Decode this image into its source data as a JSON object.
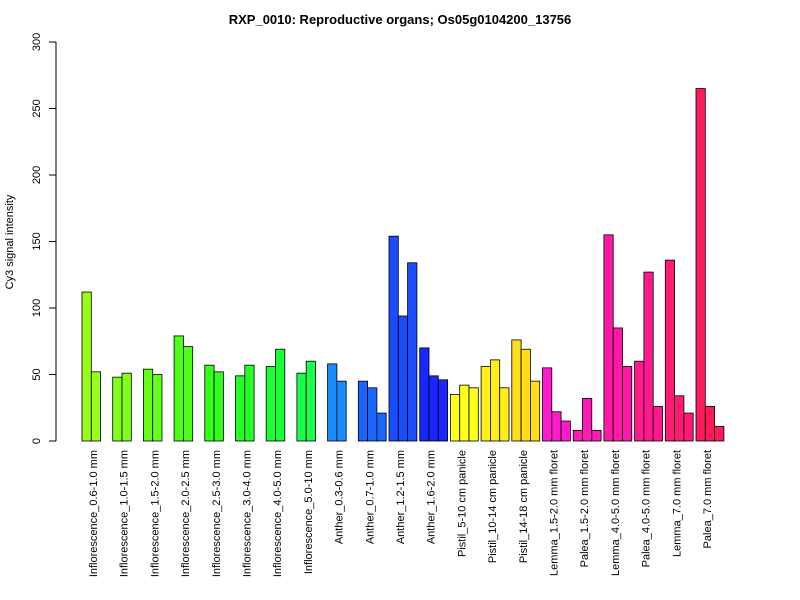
{
  "chart_data": {
    "type": "bar",
    "title": "RXP_0010: Reproductive organs; Os05g0104200_13756",
    "xlabel": "",
    "ylabel": "Cy3 signal intensity",
    "ylim": [
      0,
      300
    ],
    "yticks": [
      "0",
      "50",
      "100",
      "150",
      "200",
      "250",
      "300"
    ],
    "grid": false,
    "legend": "none",
    "groups": [
      {
        "label": "Inflorescence_0.6-1.0 mm",
        "color": "#99ff1a",
        "values": [
          112,
          52
        ]
      },
      {
        "label": "Inflorescence_1.0-1.5 mm",
        "color": "#80ff1a",
        "values": [
          48,
          51
        ]
      },
      {
        "label": "Inflorescence_1.5-2.0 mm",
        "color": "#66ff1a",
        "values": [
          54,
          50
        ]
      },
      {
        "label": "Inflorescence_2.0-2.5 mm",
        "color": "#4dff1a",
        "values": [
          79,
          71
        ]
      },
      {
        "label": "Inflorescence_2.5-3.0 mm",
        "color": "#33ff1a",
        "values": [
          57,
          52
        ]
      },
      {
        "label": "Inflorescence_3.0-4.0 mm",
        "color": "#26ff26",
        "values": [
          49,
          57
        ]
      },
      {
        "label": "Inflorescence_4.0-5.0 mm",
        "color": "#1aff33",
        "values": [
          56,
          69
        ]
      },
      {
        "label": "Inflorescence_5.0-10 mm",
        "color": "#1aff4d",
        "values": [
          51,
          60
        ]
      },
      {
        "label": "Anther_0.3-0.6 mm",
        "color": "#1a8cff",
        "values": [
          58,
          45
        ]
      },
      {
        "label": "Anther_0.7-1.0 mm",
        "color": "#1a66ff",
        "values": [
          45,
          40,
          21
        ]
      },
      {
        "label": "Anther_1.2-1.5 mm",
        "color": "#1a4dff",
        "values": [
          154,
          94,
          134
        ]
      },
      {
        "label": "Anther_1.6-2.0 mm",
        "color": "#1a26ff",
        "values": [
          70,
          49,
          46
        ]
      },
      {
        "label": "Pistil_5-10 cm panicle",
        "color": "#ffff1a",
        "values": [
          35,
          42,
          40
        ]
      },
      {
        "label": "Pistil_10-14 cm panicle",
        "color": "#ffee1a",
        "values": [
          56,
          61,
          40
        ]
      },
      {
        "label": "Pistil_14-18 cm panicle",
        "color": "#ffdd1a",
        "values": [
          76,
          69,
          45
        ]
      },
      {
        "label": "Lemma_1.5-2.0 mm floret",
        "color": "#ff1acc",
        "values": [
          55,
          22,
          15
        ]
      },
      {
        "label": "Palea_1.5-2.0 mm floret",
        "color": "#ff1ab8",
        "values": [
          8,
          32,
          8
        ]
      },
      {
        "label": "Lemma_4.0-5.0 mm floret",
        "color": "#ff1aa6",
        "values": [
          155,
          85,
          56
        ]
      },
      {
        "label": "Palea_4.0-5.0 mm floret",
        "color": "#ff1a8c",
        "values": [
          60,
          127,
          26
        ]
      },
      {
        "label": "Lemma_7.0 mm floret",
        "color": "#ff1a73",
        "values": [
          136,
          34,
          21
        ]
      },
      {
        "label": "Palea_7.0 mm floret",
        "color": "#ff1a5c",
        "values": [
          265,
          26,
          11
        ]
      }
    ]
  }
}
